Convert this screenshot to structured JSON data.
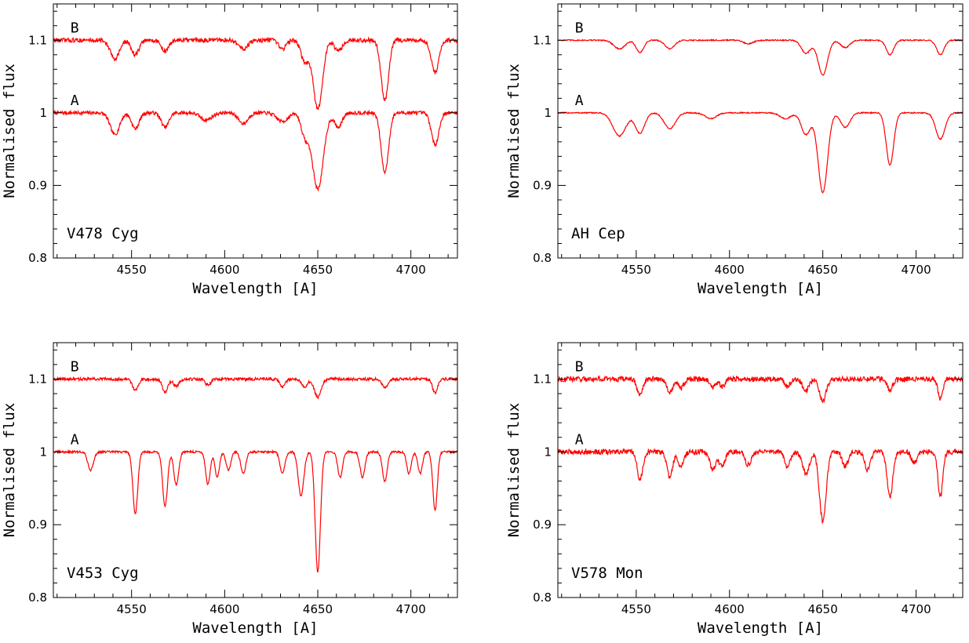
{
  "chart_data": [
    {
      "type": "line",
      "title": "",
      "annotation": "V478 Cyg",
      "xlabel": "Wavelength [A]",
      "ylabel": "Normalised flux",
      "xlim": [
        4508,
        4725
      ],
      "ylim": [
        0.8,
        1.15
      ],
      "xticks": [
        4550,
        4600,
        4650,
        4700
      ],
      "yticks": [
        0.8,
        0.9,
        1,
        1.1
      ],
      "ytick_labels": [
        "0.8",
        "0.9",
        "1",
        "1.1"
      ],
      "series_color": "#ff0000",
      "series": [
        {
          "name": "A",
          "continuum": 1.0,
          "noise": 0.0025,
          "lines": [
            [
              4541,
              0.03,
              2.5
            ],
            [
              4552,
              0.022,
              2
            ],
            [
              4568,
              0.02,
              2
            ],
            [
              4590,
              0.01,
              3
            ],
            [
              4610,
              0.015,
              2.5
            ],
            [
              4631,
              0.012,
              3
            ],
            [
              4643,
              0.03,
              2
            ],
            [
              4650,
              0.105,
              3
            ],
            [
              4661,
              0.02,
              2
            ],
            [
              4686,
              0.082,
              2
            ],
            [
              4713,
              0.044,
              2
            ]
          ]
        },
        {
          "name": "B",
          "continuum": 1.1,
          "noise": 0.003,
          "lines": [
            [
              4541,
              0.025,
              2.5
            ],
            [
              4552,
              0.02,
              2
            ],
            [
              4568,
              0.015,
              2
            ],
            [
              4610,
              0.012,
              2.5
            ],
            [
              4631,
              0.012,
              2
            ],
            [
              4643,
              0.03,
              2
            ],
            [
              4650,
              0.095,
              2.5
            ],
            [
              4661,
              0.015,
              2
            ],
            [
              4686,
              0.083,
              2
            ],
            [
              4713,
              0.045,
              2
            ]
          ]
        }
      ]
    },
    {
      "type": "line",
      "title": "",
      "annotation": "AH Cep",
      "xlabel": "Wavelength [A]",
      "ylabel": "Normalised flux",
      "xlim": [
        4508,
        4725
      ],
      "ylim": [
        0.8,
        1.15
      ],
      "xticks": [
        4550,
        4600,
        4650,
        4700
      ],
      "yticks": [
        0.8,
        0.9,
        1,
        1.1
      ],
      "ytick_labels": [
        "0.8",
        "0.9",
        "1",
        "1.1"
      ],
      "series_color": "#ff0000",
      "series": [
        {
          "name": "A",
          "continuum": 1.0,
          "noise": 0.0008,
          "lines": [
            [
              4541,
              0.032,
              3.5
            ],
            [
              4552,
              0.028,
              2.5
            ],
            [
              4568,
              0.022,
              3
            ],
            [
              4590,
              0.008,
              3
            ],
            [
              4630,
              0.008,
              3
            ],
            [
              4641,
              0.03,
              2.5
            ],
            [
              4650,
              0.11,
              2.5
            ],
            [
              4662,
              0.02,
              2.5
            ],
            [
              4686,
              0.072,
              2
            ],
            [
              4713,
              0.036,
              2.5
            ]
          ]
        },
        {
          "name": "B",
          "continuum": 1.1,
          "noise": 0.0008,
          "lines": [
            [
              4541,
              0.012,
              3
            ],
            [
              4552,
              0.017,
              2
            ],
            [
              4568,
              0.012,
              2.5
            ],
            [
              4610,
              0.005,
              2.5
            ],
            [
              4641,
              0.018,
              2.5
            ],
            [
              4650,
              0.048,
              2.5
            ],
            [
              4662,
              0.01,
              2.5
            ],
            [
              4686,
              0.02,
              2
            ],
            [
              4713,
              0.02,
              2
            ]
          ]
        }
      ]
    },
    {
      "type": "line",
      "title": "",
      "annotation": "V453 Cyg",
      "xlabel": "Wavelength [A]",
      "ylabel": "Normalised flux",
      "xlim": [
        4508,
        4725
      ],
      "ylim": [
        0.8,
        1.15
      ],
      "xticks": [
        4550,
        4600,
        4650,
        4700
      ],
      "yticks": [
        0.8,
        0.9,
        1,
        1.1
      ],
      "ytick_labels": [
        "0.8",
        "0.9",
        "1",
        "1.1"
      ],
      "series_color": "#ff0000",
      "series": [
        {
          "name": "A",
          "continuum": 1.0,
          "noise": 0.0015,
          "lines": [
            [
              4528,
              0.025,
              1.5
            ],
            [
              4552,
              0.085,
              1.3
            ],
            [
              4568,
              0.075,
              1.3
            ],
            [
              4574,
              0.045,
              1.3
            ],
            [
              4591,
              0.045,
              1.2
            ],
            [
              4596,
              0.035,
              1.2
            ],
            [
              4602,
              0.025,
              1.3
            ],
            [
              4610,
              0.03,
              1.3
            ],
            [
              4631,
              0.03,
              1.3
            ],
            [
              4641,
              0.06,
              1.5
            ],
            [
              4650,
              0.165,
              1.4
            ],
            [
              4662,
              0.035,
              1.3
            ],
            [
              4674,
              0.035,
              1.3
            ],
            [
              4686,
              0.04,
              1.3
            ],
            [
              4699,
              0.03,
              1.2
            ],
            [
              4705,
              0.03,
              1.2
            ],
            [
              4713,
              0.08,
              1.2
            ]
          ]
        },
        {
          "name": "B",
          "continuum": 1.1,
          "noise": 0.002,
          "lines": [
            [
              4552,
              0.015,
              1.5
            ],
            [
              4568,
              0.018,
              1.5
            ],
            [
              4574,
              0.01,
              1.5
            ],
            [
              4591,
              0.008,
              1.5
            ],
            [
              4631,
              0.01,
              1.5
            ],
            [
              4643,
              0.012,
              1.5
            ],
            [
              4650,
              0.025,
              1.8
            ],
            [
              4686,
              0.012,
              1.5
            ],
            [
              4713,
              0.02,
              1.3
            ]
          ]
        }
      ]
    },
    {
      "type": "line",
      "title": "",
      "annotation": "V578 Mon",
      "xlabel": "Wavelength [A]",
      "ylabel": "Normalised flux",
      "xlim": [
        4508,
        4725
      ],
      "ylim": [
        0.8,
        1.15
      ],
      "xticks": [
        4550,
        4600,
        4650,
        4700
      ],
      "yticks": [
        0.8,
        0.9,
        1,
        1.1
      ],
      "ytick_labels": [
        "0.8",
        "0.9",
        "1",
        "1.1"
      ],
      "series_color": "#ff0000",
      "series": [
        {
          "name": "A",
          "continuum": 1.0,
          "noise": 0.0035,
          "lines": [
            [
              4552,
              0.038,
              1.5
            ],
            [
              4568,
              0.035,
              1.5
            ],
            [
              4574,
              0.02,
              1.5
            ],
            [
              4591,
              0.025,
              1.5
            ],
            [
              4596,
              0.02,
              1.5
            ],
            [
              4610,
              0.018,
              1.5
            ],
            [
              4631,
              0.02,
              1.5
            ],
            [
              4641,
              0.03,
              1.8
            ],
            [
              4650,
              0.095,
              1.8
            ],
            [
              4662,
              0.02,
              1.5
            ],
            [
              4674,
              0.025,
              1.5
            ],
            [
              4686,
              0.062,
              1.5
            ],
            [
              4699,
              0.015,
              1.5
            ],
            [
              4713,
              0.062,
              1.3
            ]
          ]
        },
        {
          "name": "B",
          "continuum": 1.1,
          "noise": 0.0035,
          "lines": [
            [
              4552,
              0.022,
              1.5
            ],
            [
              4568,
              0.018,
              1.5
            ],
            [
              4574,
              0.012,
              1.5
            ],
            [
              4591,
              0.012,
              1.5
            ],
            [
              4596,
              0.01,
              1.5
            ],
            [
              4631,
              0.01,
              1.5
            ],
            [
              4641,
              0.015,
              1.8
            ],
            [
              4650,
              0.03,
              1.8
            ],
            [
              4686,
              0.015,
              1.5
            ],
            [
              4713,
              0.027,
              1.3
            ]
          ]
        }
      ]
    }
  ]
}
